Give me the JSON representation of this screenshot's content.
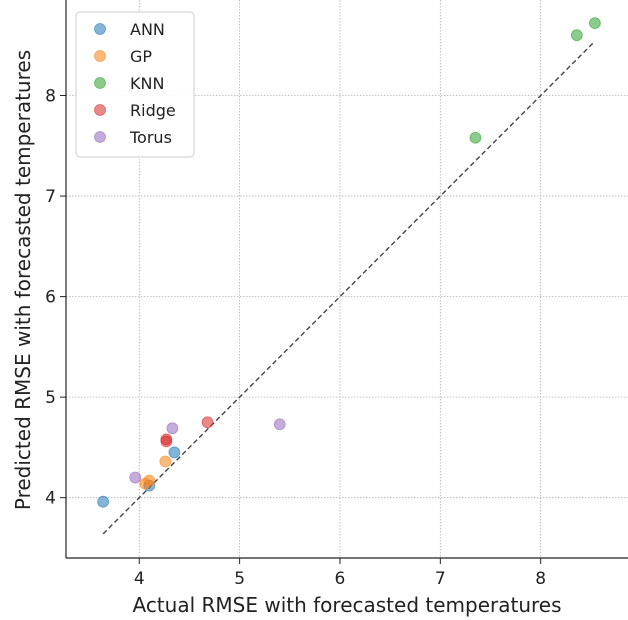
{
  "chart_data": {
    "type": "scatter",
    "title": "",
    "xlabel": "Actual RMSE with forecasted temperatures",
    "ylabel": "Predicted RMSE with forecasted temperatures",
    "xlim": [
      3.27,
      8.87
    ],
    "ylim": [
      3.4,
      8.95
    ],
    "xticks": [
      4,
      5,
      6,
      7,
      8
    ],
    "yticks": [
      4,
      5,
      6,
      7,
      8
    ],
    "grid": true,
    "legend_position": "top-left",
    "reference_line": {
      "style": "dashed",
      "color": "#444444",
      "x": [
        3.64,
        8.54
      ],
      "y": [
        3.64,
        8.54
      ]
    },
    "series": [
      {
        "name": "ANN",
        "color": "#1f77b4",
        "points": [
          [
            3.64,
            3.96
          ],
          [
            4.1,
            4.12
          ],
          [
            4.35,
            4.45
          ]
        ]
      },
      {
        "name": "GP",
        "color": "#ff7f0e",
        "points": [
          [
            4.06,
            4.14
          ],
          [
            4.1,
            4.17
          ],
          [
            4.26,
            4.36
          ]
        ]
      },
      {
        "name": "KNN",
        "color": "#2ca02c",
        "points": [
          [
            7.35,
            7.58
          ],
          [
            8.36,
            8.6
          ],
          [
            8.54,
            8.72
          ]
        ]
      },
      {
        "name": "Ridge",
        "color": "#d62728",
        "points": [
          [
            4.27,
            4.58
          ],
          [
            4.27,
            4.56
          ],
          [
            4.68,
            4.75
          ]
        ]
      },
      {
        "name": "Torus",
        "color": "#9467bd",
        "points": [
          [
            3.96,
            4.2
          ],
          [
            4.33,
            4.69
          ],
          [
            5.4,
            4.73
          ]
        ]
      }
    ]
  }
}
